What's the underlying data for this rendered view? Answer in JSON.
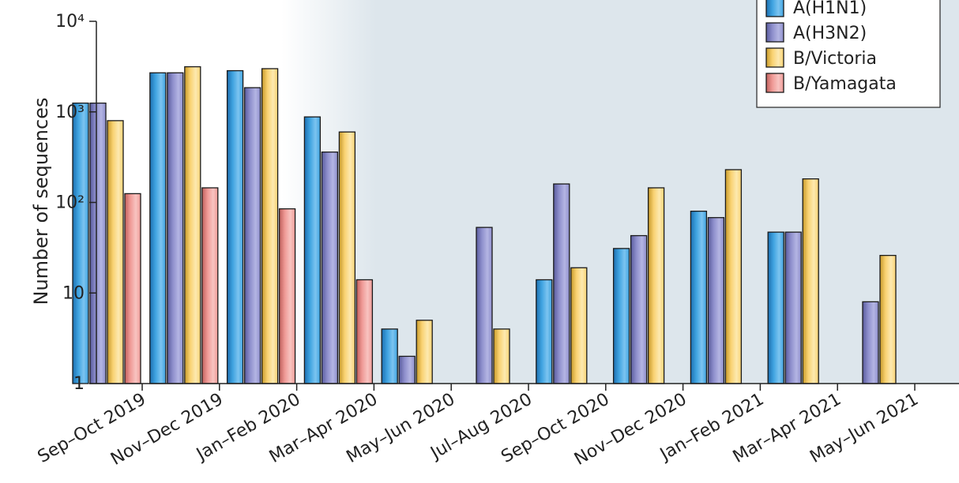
{
  "chart_data": {
    "type": "bar",
    "ylabel": "Number of sequences",
    "yscale": "log",
    "ylim": [
      1,
      10000
    ],
    "yticks": [
      {
        "value": 1,
        "label": "1"
      },
      {
        "value": 10,
        "label": "10"
      },
      {
        "value": 100,
        "label": "10²"
      },
      {
        "value": 1000,
        "label": "10³"
      },
      {
        "value": 10000,
        "label": "10⁴"
      }
    ],
    "categories": [
      "Sep–Oct 2019",
      "Nov–Dec 2019",
      "Jan–Feb 2020",
      "Mar–Apr 2020",
      "May–Jun 2020",
      "Jul–Aug 2020",
      "Sep–Oct 2020",
      "Nov–Dec 2020",
      "Jan–Feb 2021",
      "Mar–Apr 2021",
      "May–Jun 2021"
    ],
    "series": [
      {
        "name": "A(H1N1)",
        "values": [
          1250,
          2700,
          2850,
          880,
          4,
          null,
          14,
          31,
          80,
          47,
          null
        ]
      },
      {
        "name": "A(H3N2)",
        "values": [
          1250,
          2700,
          1850,
          360,
          2,
          53,
          160,
          43,
          68,
          47,
          8
        ]
      },
      {
        "name": "B/Victoria",
        "values": [
          800,
          3150,
          3000,
          600,
          5,
          4,
          19,
          145,
          230,
          182,
          26
        ]
      },
      {
        "name": "B/Yamagata",
        "values": [
          125,
          145,
          85,
          14,
          null,
          null,
          null,
          null,
          null,
          null,
          null
        ]
      }
    ],
    "legend": {
      "position": "top-right"
    },
    "shaded_region": {
      "from_category": "Mar–Apr 2020",
      "to_category": "May–Jun 2021"
    },
    "grid": false
  },
  "colors": {
    "series": [
      "#3fa3e0",
      "#8e8fcc",
      "#f9d272",
      "#ef9a96"
    ],
    "series_dark": [
      "#1d6fb0",
      "#5a5c9e",
      "#c79a2a",
      "#c0605c"
    ],
    "series_light": [
      "#7cc4f0",
      "#b4b5e3",
      "#fde9b0",
      "#f8c4c1"
    ],
    "shade": "#dde6ec"
  }
}
